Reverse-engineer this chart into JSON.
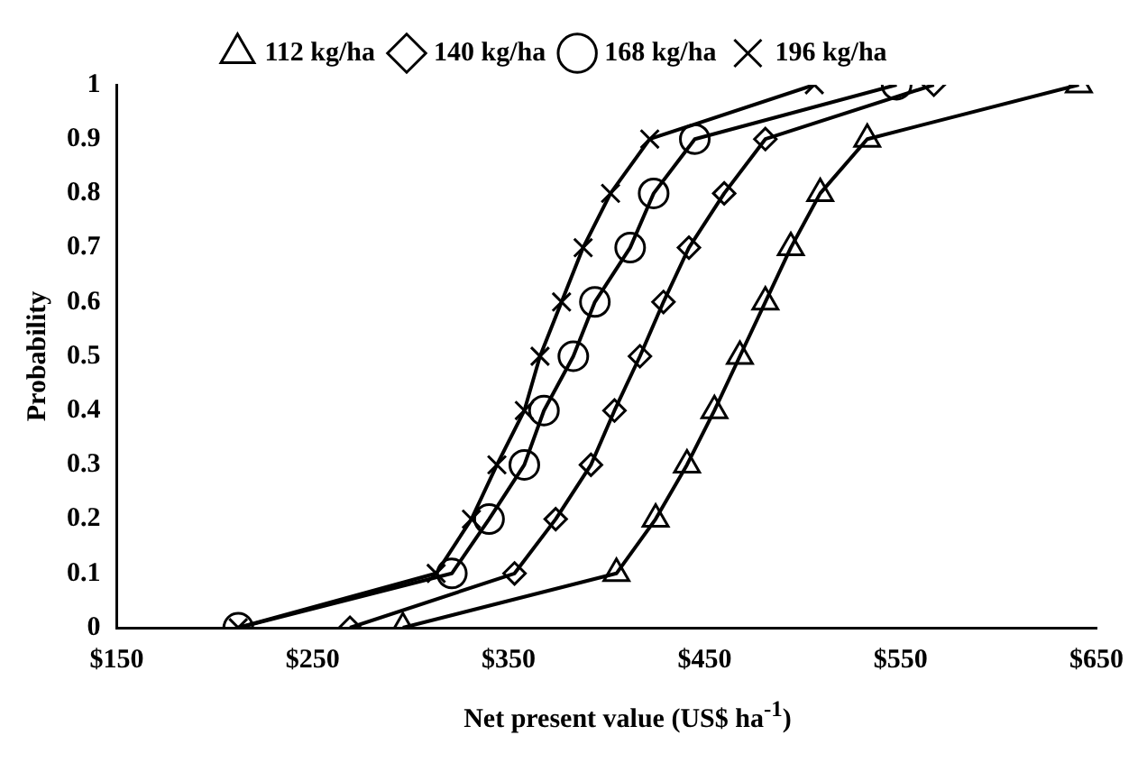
{
  "chart_data": {
    "type": "line",
    "xlabel": "Net present value (US$ ha$^{-1}$)",
    "ylabel": "Probability",
    "legend": "top",
    "grid": false,
    "xlim": [
      150,
      650
    ],
    "xticks": [
      {
        "value": 150,
        "label": "$150"
      },
      {
        "value": 250,
        "label": "$250"
      },
      {
        "value": 350,
        "label": "$350"
      },
      {
        "value": 450,
        "label": "$450"
      },
      {
        "value": 550,
        "label": "$550"
      },
      {
        "value": 650,
        "label": "$650"
      }
    ],
    "ylim": [
      0,
      1
    ],
    "yticks": [
      0,
      0.1,
      0.2,
      0.3,
      0.4,
      0.5,
      0.6,
      0.7,
      0.8,
      0.9,
      1
    ],
    "series": [
      {
        "name": "112 kg/ha",
        "color": "#000000",
        "marker": "triangle",
        "x": [
          296,
          405,
          425,
          441,
          455,
          468,
          481,
          494,
          509,
          533,
          641
        ],
        "values": [
          0,
          0.1,
          0.2,
          0.3,
          0.4,
          0.5,
          0.6,
          0.7,
          0.8,
          0.9,
          1
        ]
      },
      {
        "name": "140 kg/ha",
        "color": "#000000",
        "marker": "diamond",
        "x": [
          269,
          353,
          374,
          392,
          404,
          417,
          429,
          442,
          460,
          481,
          567
        ],
        "values": [
          0,
          0.1,
          0.2,
          0.3,
          0.4,
          0.5,
          0.6,
          0.7,
          0.8,
          0.9,
          1
        ]
      },
      {
        "name": "168 kg/ha",
        "color": "#000000",
        "marker": "circle",
        "x": [
          212,
          321,
          340,
          358,
          368,
          383,
          394,
          412,
          424,
          445,
          548
        ],
        "values": [
          0,
          0.1,
          0.2,
          0.3,
          0.4,
          0.5,
          0.6,
          0.7,
          0.8,
          0.9,
          1
        ]
      },
      {
        "name": "196 kg/ha",
        "color": "#000000",
        "marker": "cross",
        "x": [
          212,
          313,
          331,
          344,
          358,
          366,
          377,
          388,
          402,
          422,
          506
        ],
        "values": [
          0,
          0.1,
          0.2,
          0.3,
          0.4,
          0.5,
          0.6,
          0.7,
          0.8,
          0.9,
          1
        ]
      }
    ]
  }
}
